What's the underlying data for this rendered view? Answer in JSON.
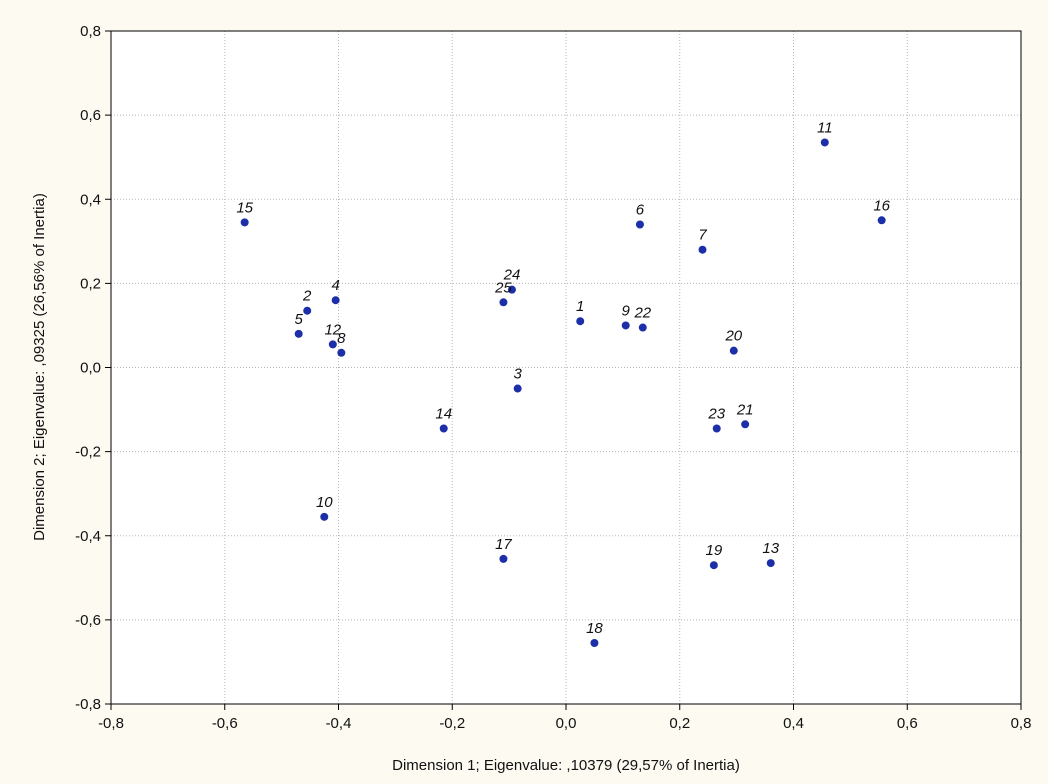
{
  "chart_data": {
    "type": "scatter",
    "xlabel": "Dimension 1; Eigenvalue: ,10379 (29,57% of Inertia)",
    "ylabel": "Dimension 2; Eigenvalue: ,09325 (26,56% of Inertia)",
    "xlim": [
      -0.8,
      0.8
    ],
    "ylim": [
      -0.8,
      0.8
    ],
    "xticks": [
      -0.8,
      -0.6,
      -0.4,
      -0.2,
      0.0,
      0.2,
      0.4,
      0.6,
      0.8
    ],
    "yticks": [
      -0.8,
      -0.6,
      -0.4,
      -0.2,
      0.0,
      0.2,
      0.4,
      0.6,
      0.8
    ],
    "xtick_labels": [
      "-0,8",
      "-0,6",
      "-0,4",
      "-0,2",
      "0,0",
      "0,2",
      "0,4",
      "0,6",
      "0,8"
    ],
    "ytick_labels": [
      "-0,8",
      "-0,6",
      "-0,4",
      "-0,2",
      "0,0",
      "0,2",
      "0,4",
      "0,6",
      "0,8"
    ],
    "grid": true,
    "marker_color": "#1c2fa8",
    "points": [
      {
        "label": "1",
        "x": 0.025,
        "y": 0.11
      },
      {
        "label": "2",
        "x": -0.455,
        "y": 0.135
      },
      {
        "label": "3",
        "x": -0.085,
        "y": -0.05
      },
      {
        "label": "4",
        "x": -0.405,
        "y": 0.16
      },
      {
        "label": "5",
        "x": -0.47,
        "y": 0.08
      },
      {
        "label": "6",
        "x": 0.13,
        "y": 0.34
      },
      {
        "label": "7",
        "x": 0.24,
        "y": 0.28
      },
      {
        "label": "8",
        "x": -0.395,
        "y": 0.035
      },
      {
        "label": "9",
        "x": 0.105,
        "y": 0.1
      },
      {
        "label": "10",
        "x": -0.425,
        "y": -0.355
      },
      {
        "label": "11",
        "x": 0.455,
        "y": 0.535
      },
      {
        "label": "12",
        "x": -0.41,
        "y": 0.055
      },
      {
        "label": "13",
        "x": 0.36,
        "y": -0.465
      },
      {
        "label": "14",
        "x": -0.215,
        "y": -0.145
      },
      {
        "label": "15",
        "x": -0.565,
        "y": 0.345
      },
      {
        "label": "16",
        "x": 0.555,
        "y": 0.35
      },
      {
        "label": "17",
        "x": -0.11,
        "y": -0.455
      },
      {
        "label": "18",
        "x": 0.05,
        "y": -0.655
      },
      {
        "label": "19",
        "x": 0.26,
        "y": -0.47
      },
      {
        "label": "20",
        "x": 0.295,
        "y": 0.04
      },
      {
        "label": "21",
        "x": 0.315,
        "y": -0.135
      },
      {
        "label": "22",
        "x": 0.135,
        "y": 0.095
      },
      {
        "label": "23",
        "x": 0.265,
        "y": -0.145
      },
      {
        "label": "24",
        "x": -0.095,
        "y": 0.185
      },
      {
        "label": "25",
        "x": -0.11,
        "y": 0.155
      }
    ]
  }
}
